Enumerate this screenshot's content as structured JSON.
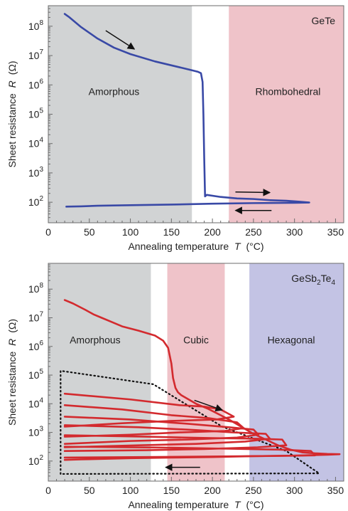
{
  "chart_data": [
    {
      "type": "line",
      "title": "GeTe",
      "xlabel": "Annealing temperature",
      "xlabel_var": "T",
      "xlabel_unit": "(°C)",
      "ylabel": "Sheet resistance",
      "ylabel_var": "R",
      "ylabel_unit": "(Ω)",
      "xlim": [
        0,
        360
      ],
      "x_ticks": [
        0,
        50,
        100,
        150,
        200,
        250,
        300,
        350
      ],
      "y_scale": "log",
      "ylim_log10": [
        1.3,
        8.7
      ],
      "y_ticks": [
        {
          "exp": 2,
          "base": "10",
          "sup": "2"
        },
        {
          "exp": 3,
          "base": "10",
          "sup": "3"
        },
        {
          "exp": 4,
          "base": "10",
          "sup": "4"
        },
        {
          "exp": 5,
          "base": "10",
          "sup": "5"
        },
        {
          "exp": 6,
          "base": "10",
          "sup": "6"
        },
        {
          "exp": 7,
          "base": "10",
          "sup": "7"
        },
        {
          "exp": 8,
          "base": "10",
          "sup": "8"
        }
      ],
      "regions": [
        {
          "label": "Amorphous",
          "x0": 0,
          "x1": 175,
          "color": "#d1d3d4",
          "label_x": 80,
          "label_log10": 5.65
        },
        {
          "label": "Rhombohedral",
          "x0": 220,
          "x1": 360,
          "color": "#efc3c9",
          "label_x": 292,
          "label_log10": 5.65
        }
      ],
      "series": [
        {
          "color": "#3949a6",
          "x": [
            20,
            25,
            40,
            60,
            80,
            100,
            130,
            160,
            172,
            182,
            186,
            188,
            189,
            190,
            191,
            193,
            210,
            230,
            250,
            270,
            290,
            305,
            318,
            300,
            250,
            200,
            150,
            100,
            60,
            40,
            22
          ],
          "log10": [
            8.42,
            8.32,
            7.97,
            7.58,
            7.27,
            7.05,
            6.8,
            6.6,
            6.52,
            6.45,
            6.4,
            6.1,
            5.0,
            3.5,
            2.2,
            2.25,
            2.18,
            2.13,
            2.11,
            2.07,
            2.05,
            2.02,
            1.99,
            1.98,
            1.97,
            1.95,
            1.92,
            1.9,
            1.88,
            1.86,
            1.85
          ]
        }
      ],
      "arrows": [
        {
          "x0": 70,
          "l0": 7.85,
          "x1": 105,
          "l1": 7.22
        },
        {
          "x0": 228,
          "l0": 2.35,
          "x1": 270,
          "l1": 2.33
        },
        {
          "x0": 272,
          "l0": 1.72,
          "x1": 228,
          "l1": 1.72
        }
      ]
    },
    {
      "type": "line",
      "title_base": "GeSb",
      "title_sub1": "2",
      "title_mid": "Te",
      "title_sub2": "4",
      "xlabel": "Annealing temperature",
      "xlabel_var": "T",
      "xlabel_unit": "(°C)",
      "ylabel": "Sheet resistance",
      "ylabel_var": "R",
      "ylabel_unit": "(Ω)",
      "xlim": [
        0,
        360
      ],
      "x_ticks": [
        0,
        50,
        100,
        150,
        200,
        250,
        300,
        350
      ],
      "y_scale": "log",
      "ylim_log10": [
        1.3,
        8.9
      ],
      "y_ticks": [
        {
          "exp": 2,
          "base": "10",
          "sup": "2"
        },
        {
          "exp": 3,
          "base": "10",
          "sup": "3"
        },
        {
          "exp": 4,
          "base": "10",
          "sup": "4"
        },
        {
          "exp": 5,
          "base": "10",
          "sup": "5"
        },
        {
          "exp": 6,
          "base": "10",
          "sup": "6"
        },
        {
          "exp": 7,
          "base": "10",
          "sup": "7"
        },
        {
          "exp": 8,
          "base": "10",
          "sup": "8"
        }
      ],
      "regions": [
        {
          "label": "Amorphous",
          "x0": 0,
          "x1": 125,
          "color": "#d1d3d4",
          "label_x": 57,
          "label_log10": 6.1
        },
        {
          "label": "Cubic",
          "x0": 145,
          "x1": 215,
          "color": "#efc3c9",
          "label_x": 180,
          "label_log10": 6.1
        },
        {
          "label": "Hexagonal",
          "x0": 245,
          "x1": 360,
          "color": "#c3c3e4",
          "label_x": 296,
          "label_log10": 6.1
        }
      ],
      "series": [
        {
          "color": "#d32a2e",
          "x": [
            20,
            30,
            45,
            55,
            65,
            75,
            90,
            110,
            130,
            140,
            146,
            150,
            152,
            155,
            158,
            162,
            168,
            180,
            195,
            210,
            220,
            235,
            250,
            265,
            280,
            295,
            310,
            325,
            340,
            355,
            340,
            300,
            250,
            200,
            150,
            100,
            60,
            40,
            20
          ],
          "log10": [
            7.62,
            7.5,
            7.28,
            7.12,
            7.0,
            6.88,
            6.7,
            6.55,
            6.38,
            6.2,
            5.95,
            5.4,
            4.9,
            4.55,
            4.4,
            4.3,
            4.2,
            4.0,
            3.82,
            3.6,
            3.45,
            3.2,
            2.95,
            2.75,
            2.55,
            2.4,
            2.3,
            2.27,
            2.25,
            2.24,
            2.22,
            2.19,
            2.17,
            2.14,
            2.12,
            2.1,
            2.07,
            2.06,
            2.04
          ]
        },
        {
          "color": "#d32a2e",
          "x": [
            20,
            100,
            160,
            190,
            210,
            226,
            205,
            150,
            90,
            20
          ],
          "log10": [
            4.35,
            4.15,
            3.95,
            3.9,
            3.8,
            3.55,
            3.45,
            3.4,
            3.32,
            3.2
          ]
        },
        {
          "color": "#d32a2e",
          "x": [
            20,
            90,
            150,
            195,
            230,
            238,
            215,
            160,
            100,
            20
          ],
          "log10": [
            3.95,
            3.8,
            3.6,
            3.5,
            3.35,
            3.15,
            3.05,
            3.0,
            2.92,
            2.85
          ]
        },
        {
          "color": "#d32a2e",
          "x": [
            20,
            100,
            170,
            220,
            250,
            256,
            230,
            170,
            100,
            20
          ],
          "log10": [
            3.55,
            3.45,
            3.3,
            3.18,
            3.1,
            2.92,
            2.82,
            2.75,
            2.7,
            2.6
          ]
        },
        {
          "color": "#d32a2e",
          "x": [
            20,
            110,
            180,
            225,
            265,
            270,
            240,
            180,
            110,
            20
          ],
          "log10": [
            3.25,
            3.18,
            3.08,
            3.0,
            2.95,
            2.78,
            2.68,
            2.6,
            2.55,
            2.48
          ]
        },
        {
          "color": "#d32a2e",
          "x": [
            20,
            120,
            200,
            255,
            285,
            290,
            255,
            190,
            120,
            20
          ],
          "log10": [
            2.9,
            2.85,
            2.8,
            2.78,
            2.75,
            2.55,
            2.48,
            2.42,
            2.38,
            2.35
          ]
        },
        {
          "color": "#d32a2e",
          "x": [
            20,
            140,
            220,
            280,
            320,
            325,
            280,
            200,
            120,
            20
          ],
          "log10": [
            2.5,
            2.47,
            2.43,
            2.4,
            2.35,
            2.2,
            2.18,
            2.16,
            2.14,
            2.12
          ]
        }
      ],
      "dotted_boundary": {
        "color": "#111111",
        "x": [
          15,
          15,
          128,
          212,
          290,
          330,
          15
        ],
        "log10": [
          1.55,
          5.15,
          4.68,
          3.2,
          2.35,
          1.57,
          1.55
        ]
      },
      "arrows": [
        {
          "x0": 178,
          "l0": 4.12,
          "x1": 212,
          "l1": 3.78
        },
        {
          "x0": 185,
          "l0": 1.78,
          "x1": 143,
          "l1": 1.78
        }
      ]
    }
  ]
}
